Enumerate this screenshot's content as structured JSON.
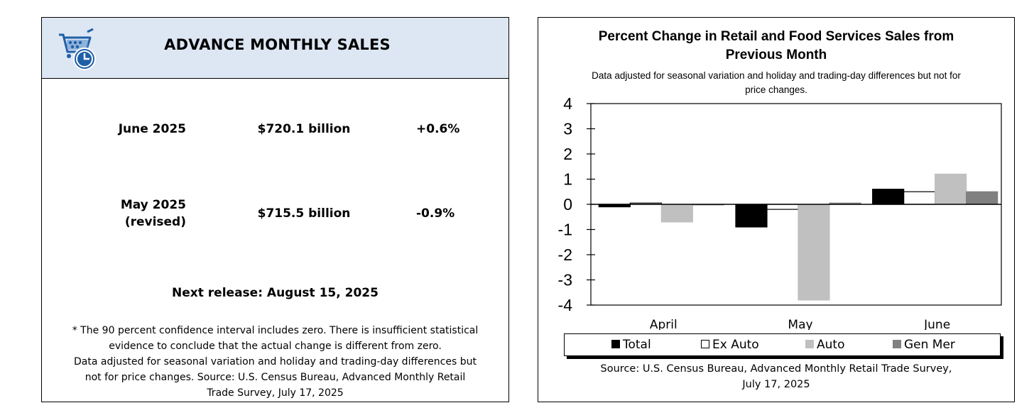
{
  "left": {
    "title": "ADVANCE MONTHLY SALES",
    "icon": "shopping-cart-clock-icon",
    "rows": [
      {
        "period_line1": "June 2025",
        "period_line2": "",
        "amount": "$720.1 billion",
        "pct": "+0.6%"
      },
      {
        "period_line1": "May 2025",
        "period_line2": "(revised)",
        "amount": "$715.5 billion",
        "pct": "-0.9%"
      }
    ],
    "next_release": "Next release: August 15, 2025",
    "footnote_lines": [
      "* The 90 percent confidence interval includes zero. There is insufficient statistical",
      "evidence to conclude that the actual change is different from zero.",
      "Data adjusted for seasonal variation and holiday and trading-day differences but",
      "not for price changes. Source: U.S. Census Bureau, Advanced Monthly Retail",
      "Trade Survey, July 17, 2025"
    ],
    "colors": {
      "header_bg": "#dde7f3",
      "icon_blue": "#1f5fa8"
    }
  },
  "chart_data": {
    "type": "bar",
    "title_lines": [
      "Percent Change in Retail and Food Services Sales from",
      "Previous Month"
    ],
    "subtitle_lines": [
      "Data adjusted for seasonal variation and holiday and trading-day differences but not for",
      "price changes."
    ],
    "categories": [
      "April",
      "May",
      "June"
    ],
    "ylim": [
      -4,
      4
    ],
    "yticks": [
      4,
      3,
      2,
      1,
      0,
      -1,
      -2,
      -3,
      -4
    ],
    "series": [
      {
        "name": "Total",
        "values": [
          -0.1,
          -0.9,
          0.6
        ],
        "fill": "#000000",
        "stroke": "#000000"
      },
      {
        "name": "Ex Auto",
        "values": [
          0.05,
          -0.2,
          0.5
        ],
        "fill": "#ffffff",
        "stroke": "#000000"
      },
      {
        "name": "Auto",
        "values": [
          -0.7,
          -3.8,
          1.2
        ],
        "fill": "#c0c0c0",
        "stroke": "#c0c0c0"
      },
      {
        "name": "Gen Mer",
        "values": [
          0.0,
          0.05,
          0.5
        ],
        "fill": "#808080",
        "stroke": "#808080"
      }
    ],
    "legend_position": "bottom",
    "grid": false,
    "source_lines": [
      "Source: U.S. Census Bureau, Advanced Monthly Retail Trade Survey,",
      "July 17, 2025"
    ]
  }
}
